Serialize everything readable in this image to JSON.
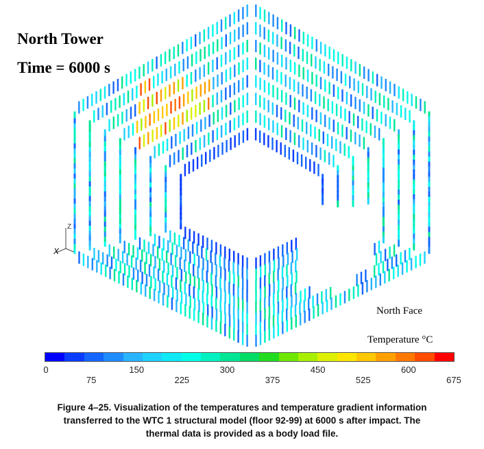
{
  "title_line1": "North Tower",
  "title_line2": "Time = 6000 s",
  "face_label": "North Face",
  "legend": {
    "title": "Temperature  °C",
    "ticks_top": [
      "0",
      "150",
      "300",
      "450",
      "600"
    ],
    "ticks_bottom": [
      "75",
      "225",
      "375",
      "525",
      "675"
    ],
    "colors": [
      "#0000ff",
      "#0a3cff",
      "#1466ff",
      "#1e8cff",
      "#28b4ff",
      "#20d2ff",
      "#10eaf6",
      "#00ffe8",
      "#00f2c0",
      "#00e694",
      "#00dc64",
      "#22dc20",
      "#6ee800",
      "#a8f000",
      "#dcf000",
      "#ffe600",
      "#ffc800",
      "#ffa000",
      "#ff7800",
      "#ff4c00",
      "#ff0000"
    ]
  },
  "axis_labels": {
    "z": "Z",
    "x": "X"
  },
  "caption": [
    "Figure 4–25. Visualization of the temperatures and temperature gradient information",
    "transferred to the  WTC 1  structural model  (floor 92-99) at 6000 s after impact. The",
    "thermal data is provided as a body load file."
  ]
}
